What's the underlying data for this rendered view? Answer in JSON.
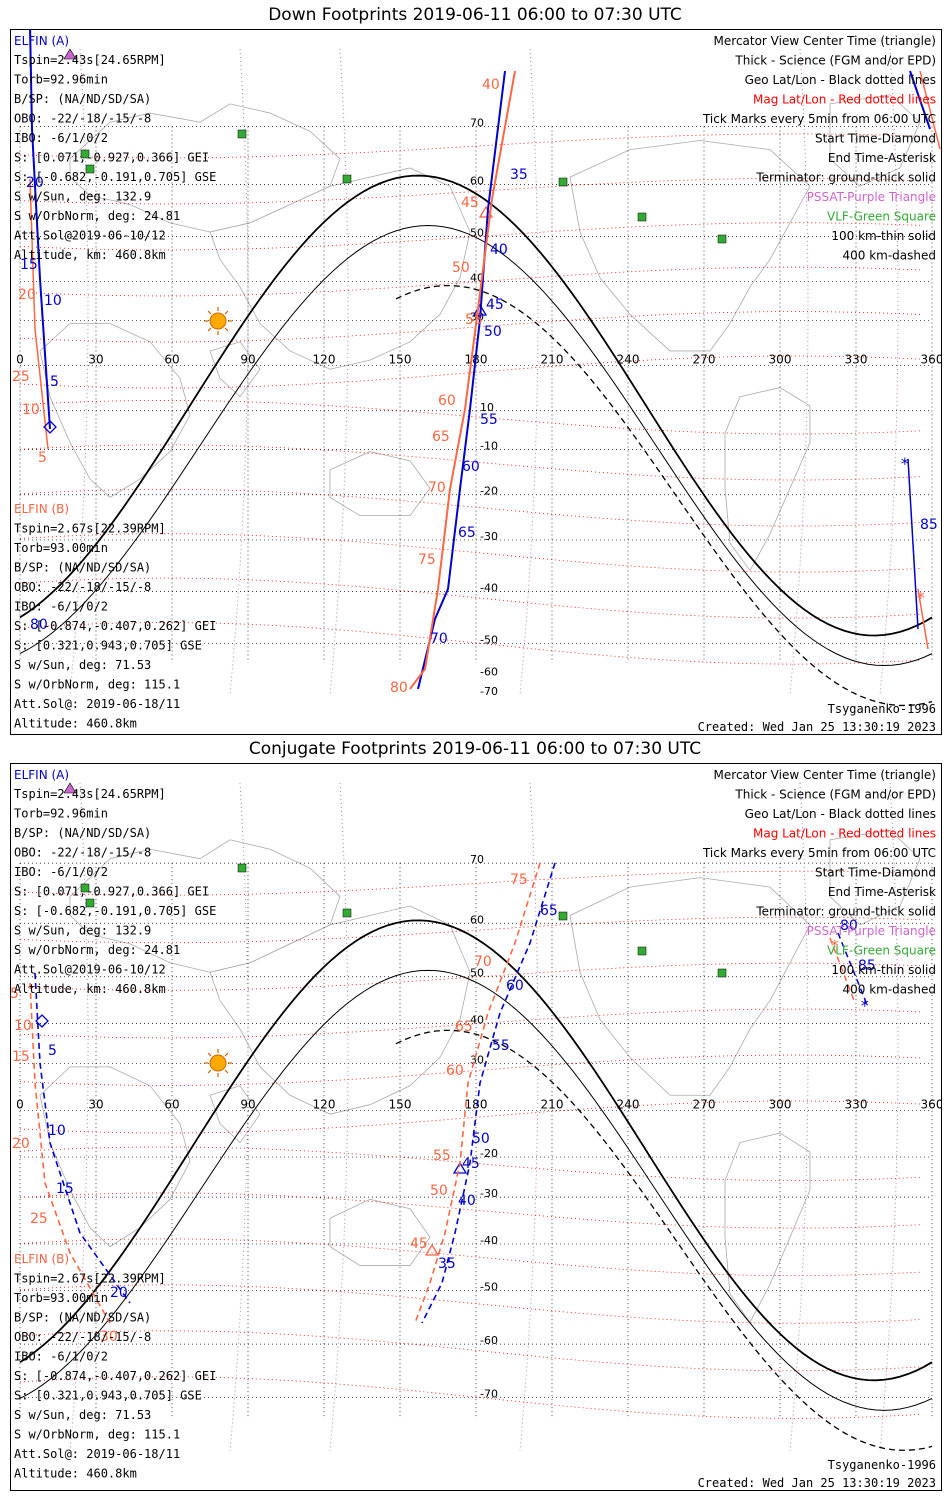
{
  "panels": [
    {
      "id": "down",
      "title": "Down Footprints 2019-06-11 06:00 to 07:30 UTC",
      "legend": [
        {
          "text": "Mercator View Center Time (triangle)",
          "color": "#000000"
        },
        {
          "text": "Thick - Science (FGM and/or EPD)",
          "color": "#000000"
        },
        {
          "text": "Geo Lat/Lon - Black dotted lines",
          "color": "#000000"
        },
        {
          "text": "Mag Lat/Lon - Red dotted lines",
          "color": "#ff0000"
        },
        {
          "text": "Tick Marks every 5min from 06:00 UTC",
          "color": "#000000"
        },
        {
          "text": "Start Time-Diamond",
          "color": "#000000"
        },
        {
          "text": "End Time-Asterisk",
          "color": "#000000"
        },
        {
          "text": "Terminator: ground-thick solid",
          "color": "#000000"
        },
        {
          "text": "PSSAT-Purple Triangle",
          "color": "#cc66cc"
        },
        {
          "text": "VLF-Green Square",
          "color": "#33aa33"
        },
        {
          "text": "100 km-thin solid",
          "color": "#000000"
        },
        {
          "text": "400 km-dashed",
          "color": "#000000"
        }
      ],
      "info_a": {
        "header": "ELFIN (A)",
        "lines": [
          "Tspin=2.43s[24.65RPM]",
          "Torb=92.96min",
          "B/SP: (NA/ND/SD/SA)",
          "OBO: -22/-18/-15/-8",
          "IBO: -6/1/0/2",
          "S: [0.071,-0.927,0.366] GEI",
          "S: [-0.682,-0.191,0.705] GSE",
          "S w/Sun, deg: 132.9",
          "S w/OrbNorm, deg: 24.81",
          "Att.Sol@2019-06-10/12",
          "Altitude, km: 460.8km"
        ]
      },
      "info_b": {
        "header": "ELFIN (B)",
        "lines": [
          "Tspin=2.67s[22.39RPM]",
          "Torb=93.00min",
          "B/SP: (NA/ND/SD/SA)",
          "OBO: -22/-18/-15/-8",
          "IBO: -6/1/0/2",
          "S: [-0.874,-0.407,0.262] GEI",
          "S: [0.321,0.943,0.705] GSE",
          "S w/Sun, deg: 71.53",
          "S w/OrbNorm, deg: 115.1",
          "Att.Sol@: 2019-06-18/11",
          "Altitude: 460.8km"
        ]
      },
      "model": "Tsyganenko-1996",
      "created": "Created: Wed Jan 25 13:30:19 2023",
      "lon_ticks": [
        "0",
        "30",
        "60",
        "90",
        "120",
        "150",
        "180",
        "210",
        "240",
        "270",
        "300",
        "330",
        "360"
      ],
      "lat_labels": [
        "70",
        "60",
        "50",
        "40",
        "30",
        "10",
        "-10",
        "-20",
        "-30",
        "-40",
        "-50",
        "-60",
        "-70"
      ],
      "track_a_labels": [
        "35",
        "40",
        "45",
        "50",
        "55",
        "60",
        "65",
        "70",
        "10",
        "5",
        "15",
        "20",
        "80",
        "85"
      ],
      "track_b_labels": [
        "40",
        "45",
        "50",
        "55",
        "60",
        "65",
        "70",
        "75",
        "80",
        "20",
        "10",
        "5",
        "25"
      ]
    },
    {
      "id": "conjugate",
      "title": "Conjugate Footprints 2019-06-11 06:00 to 07:30 UTC",
      "legend": [
        {
          "text": "Mercator View Center Time (triangle)",
          "color": "#000000"
        },
        {
          "text": "Thick - Science (FGM and/or EPD)",
          "color": "#000000"
        },
        {
          "text": "Geo Lat/Lon - Black dotted lines",
          "color": "#000000"
        },
        {
          "text": "Mag Lat/Lon - Red dotted lines",
          "color": "#ff0000"
        },
        {
          "text": "Tick Marks every 5min from 06:00 UTC",
          "color": "#000000"
        },
        {
          "text": "Start Time-Diamond",
          "color": "#000000"
        },
        {
          "text": "End Time-Asterisk",
          "color": "#000000"
        },
        {
          "text": "Terminator: ground-thick solid",
          "color": "#000000"
        },
        {
          "text": "PSSAT-Purple Triangle",
          "color": "#cc66cc"
        },
        {
          "text": "VLF-Green Square",
          "color": "#33aa33"
        },
        {
          "text": "100 km-thin solid",
          "color": "#000000"
        },
        {
          "text": "400 km-dashed",
          "color": "#000000"
        }
      ],
      "info_a": {
        "header": "ELFIN (A)",
        "lines": [
          "Tspin=2.43s[24.65RPM]",
          "Torb=92.96min",
          "B/SP: (NA/ND/SD/SA)",
          "OBO: -22/-18/-15/-8",
          "IBO: -6/1/0/2",
          "S: [0.071,-0.927,0.366] GEI",
          "S: [-0.682,-0.191,0.705] GSE",
          "S w/Sun, deg: 132.9",
          "S w/OrbNorm, deg: 24.81",
          "Att.Sol@2019-06-10/12",
          "Altitude, km: 460.8km"
        ]
      },
      "info_b": {
        "header": "ELFIN (B)",
        "lines": [
          "Tspin=2.67s[22.39RPM]",
          "Torb=93.00min",
          "B/SP: (NA/ND/SD/SA)",
          "OBO: -22/-18/-15/-8",
          "IBO: -6/1/0/2",
          "S: [-0.874,-0.407,0.262] GEI",
          "S: [0.321,0.943,0.705] GSE",
          "S w/Sun, deg: 71.53",
          "S w/OrbNorm, deg: 115.1",
          "Att.Sol@: 2019-06-18/11",
          "Altitude: 460.8km"
        ]
      },
      "model": "Tsyganenko-1996",
      "created": "Created: Wed Jan 25 13:30:19 2023",
      "lon_ticks": [
        "0",
        "30",
        "60",
        "90",
        "120",
        "150",
        "180",
        "210",
        "240",
        "270",
        "300",
        "330",
        "360"
      ],
      "lat_labels": [
        "70",
        "60",
        "50",
        "40",
        "30",
        "-20",
        "-30",
        "-40",
        "-50",
        "-60",
        "-70"
      ],
      "track_a_labels": [
        "65",
        "60",
        "55",
        "50",
        "45",
        "40",
        "35",
        "5",
        "10",
        "15",
        "20",
        "80",
        "85"
      ],
      "track_b_labels": [
        "75",
        "70",
        "65",
        "60",
        "55",
        "50",
        "45",
        "5",
        "10",
        "15",
        "20",
        "25",
        "30"
      ]
    }
  ],
  "colors": {
    "elfin_a": "#0000cc",
    "elfin_b": "#ff6644",
    "mag_grid": "#ff0000",
    "geo_grid": "#000000",
    "meridian": "#cc66cc",
    "vlf": "#33aa33",
    "sun": "#ffaa00"
  },
  "markers": {
    "start": "diamond-icon",
    "end": "asterisk-icon",
    "center": "triangle-icon",
    "sun": "sun-icon",
    "vlf": "square-icon",
    "pssat": "purple-triangle-icon"
  }
}
